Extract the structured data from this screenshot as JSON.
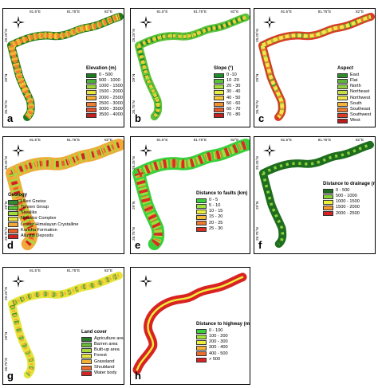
{
  "panels": [
    {
      "id": "a",
      "letter": "a",
      "ticks_top": [
        "81.5°E",
        "81.75°E",
        "82°E"
      ],
      "ticks_left": [
        "29.25°N",
        "29°N",
        "28.75°N"
      ],
      "legend": {
        "title": "Elevation (m)",
        "items": [
          {
            "label": "0 - 500",
            "color": "#1e7a1e"
          },
          {
            "label": "500 - 1000",
            "color": "#4caf3a"
          },
          {
            "label": "1000 - 1500",
            "color": "#9ed63a"
          },
          {
            "label": "1500 - 2000",
            "color": "#e8e63a"
          },
          {
            "label": "2000 - 2500",
            "color": "#f4b233"
          },
          {
            "label": "2500 - 3000",
            "color": "#ef7f2e"
          },
          {
            "label": "3000 - 3500",
            "color": "#e2502a"
          },
          {
            "label": "3500 - 4000",
            "color": "#c8201f"
          }
        ]
      },
      "map_colors": [
        "#1e7a1e",
        "#4caf3a",
        "#9ed63a",
        "#e8e63a",
        "#f4b233",
        "#ef7f2e"
      ]
    },
    {
      "id": "b",
      "letter": "b",
      "ticks_top": [
        "81.5°E",
        "81.75°E",
        "82°E"
      ],
      "ticks_left": [
        "29.25°N",
        "29°N",
        "28.75°N"
      ],
      "legend": {
        "title": "Slope (°)",
        "items": [
          {
            "label": "0 -10",
            "color": "#1e8c2a"
          },
          {
            "label": "10 -20",
            "color": "#5cc23a"
          },
          {
            "label": "20 - 30",
            "color": "#a6df3c"
          },
          {
            "label": "30 - 40",
            "color": "#e8ec3c"
          },
          {
            "label": "40 - 50",
            "color": "#f7c936"
          },
          {
            "label": "50 - 60",
            "color": "#f2902f"
          },
          {
            "label": "60 - 70",
            "color": "#e6532a"
          },
          {
            "label": "70 - 80",
            "color": "#c81e1e"
          }
        ]
      },
      "map_colors": [
        "#5cc23a",
        "#a6df3c",
        "#e8ec3c",
        "#1e8c2a",
        "#f7c936"
      ]
    },
    {
      "id": "c",
      "letter": "c",
      "ticks_top": [
        "81.5°E",
        "81.75°E",
        "82°E"
      ],
      "ticks_left": [
        "29.25°N",
        "29°N",
        "28.75°N"
      ],
      "legend": {
        "title": "Aspect",
        "items": [
          {
            "label": "East",
            "color": "#2e8b2e"
          },
          {
            "label": "Flat",
            "color": "#5fb33b"
          },
          {
            "label": "North",
            "color": "#8fcf3f"
          },
          {
            "label": "Northeast",
            "color": "#c4e046"
          },
          {
            "label": "Northwest",
            "color": "#eee84a"
          },
          {
            "label": "South",
            "color": "#f6b43a"
          },
          {
            "label": "Southeast",
            "color": "#ee7a30"
          },
          {
            "label": "Southwest",
            "color": "#dd3b25"
          },
          {
            "label": "West",
            "color": "#b71c1c"
          }
        ]
      },
      "map_colors": [
        "#dd3b25",
        "#2e8b2e",
        "#f6b43a",
        "#8fcf3f",
        "#ee7a30",
        "#eee84a"
      ]
    },
    {
      "id": "d",
      "letter": "d",
      "ticks_top": [
        "81.5°E",
        "81.75°E",
        "82°E"
      ],
      "ticks_left": [
        "29.25°N",
        "29°N",
        "28.75°N"
      ],
      "legend": {
        "title": "Geology",
        "items": [
          {
            "label": "Ulleri Gneiss",
            "color": "#2e8b2e"
          },
          {
            "label": "Tansen Group",
            "color": "#5cbf3b"
          },
          {
            "label": "Siwaliks",
            "color": "#a4dc3e"
          },
          {
            "label": "Ninaktor Complex",
            "color": "#e6e43c"
          },
          {
            "label": "Lesser Himalayan Crystalline",
            "color": "#f2a93a"
          },
          {
            "label": "Kuncha Formation",
            "color": "#e8602c"
          },
          {
            "label": "Alluvial Deposits",
            "color": "#cf2323"
          }
        ]
      },
      "map_colors": [
        "#f2a93a",
        "#e8602c",
        "#cf2323",
        "#a4dc3e"
      ]
    },
    {
      "id": "e",
      "letter": "e",
      "ticks_top": [
        "81.5°E",
        "81.75°E",
        "82°E"
      ],
      "ticks_left": [
        "29.25°N",
        "29°N",
        "28.75°N"
      ],
      "legend": {
        "title": "Distance to faults (km)",
        "items": [
          {
            "label": "0 - 5",
            "color": "#3ccf3c"
          },
          {
            "label": "5 - 10",
            "color": "#9ee03c"
          },
          {
            "label": "10 - 15",
            "color": "#eeee3c"
          },
          {
            "label": "15 - 20",
            "color": "#f6bc38"
          },
          {
            "label": "20 - 25",
            "color": "#ee7a2f"
          },
          {
            "label": "25 - 30",
            "color": "#d92d24"
          }
        ]
      },
      "map_colors": [
        "#3ccf3c",
        "#9ee03c",
        "#ee7a2f",
        "#d92d24"
      ]
    },
    {
      "id": "f",
      "letter": "f",
      "ticks_top": [
        "81.5°E",
        "81.75°E",
        "82°E"
      ],
      "ticks_left": [
        "29.25°N",
        "29°N",
        "28.75°N"
      ],
      "legend": {
        "title": "Distance to drainage (m)",
        "items": [
          {
            "label": "0 - 500",
            "color": "#1f6e1f"
          },
          {
            "label": "500 - 1000",
            "color": "#8bd13b"
          },
          {
            "label": "1000 - 1500",
            "color": "#eeee3c"
          },
          {
            "label": "1500 - 2000",
            "color": "#f2962f"
          },
          {
            "label": "2000 - 2500",
            "color": "#d92323"
          }
        ]
      },
      "map_colors": [
        "#1f6e1f",
        "#8bd13b"
      ]
    },
    {
      "id": "g",
      "letter": "g",
      "ticks_top": [
        "81.5°E",
        "81.75°E",
        "82°E"
      ],
      "ticks_left": [
        "29.25°N",
        "29°N",
        "28.75°N"
      ],
      "legend": {
        "title": "Land cover",
        "items": [
          {
            "label": "Agriculture area",
            "color": "#2a7a2a"
          },
          {
            "label": "Barren area",
            "color": "#6ab93a"
          },
          {
            "label": "Built-up area",
            "color": "#a8d83c"
          },
          {
            "label": "Forest",
            "color": "#e6e33c"
          },
          {
            "label": "Grassland",
            "color": "#f2b337"
          },
          {
            "label": "Shrubland",
            "color": "#ec6f2d"
          },
          {
            "label": "Water body",
            "color": "#d52424"
          }
        ]
      },
      "map_colors": [
        "#e6e33c",
        "#2a7a2a",
        "#6ab93a",
        "#f2b337"
      ]
    },
    {
      "id": "h",
      "letter": "h",
      "ticks_top": [],
      "ticks_left": [],
      "legend": {
        "title": "Distance to highway (m)",
        "items": [
          {
            "label": "0 - 100",
            "color": "#3cd03c"
          },
          {
            "label": "100 - 200",
            "color": "#a4e23c"
          },
          {
            "label": "200 - 300",
            "color": "#eeee3c"
          },
          {
            "label": "300 - 400",
            "color": "#f6b236"
          },
          {
            "label": "400 - 500",
            "color": "#ee6e2d"
          },
          {
            "label": "> 500",
            "color": "#d92323"
          }
        ]
      },
      "map_colors": [
        "#d92323",
        "#eeee3c"
      ]
    }
  ]
}
